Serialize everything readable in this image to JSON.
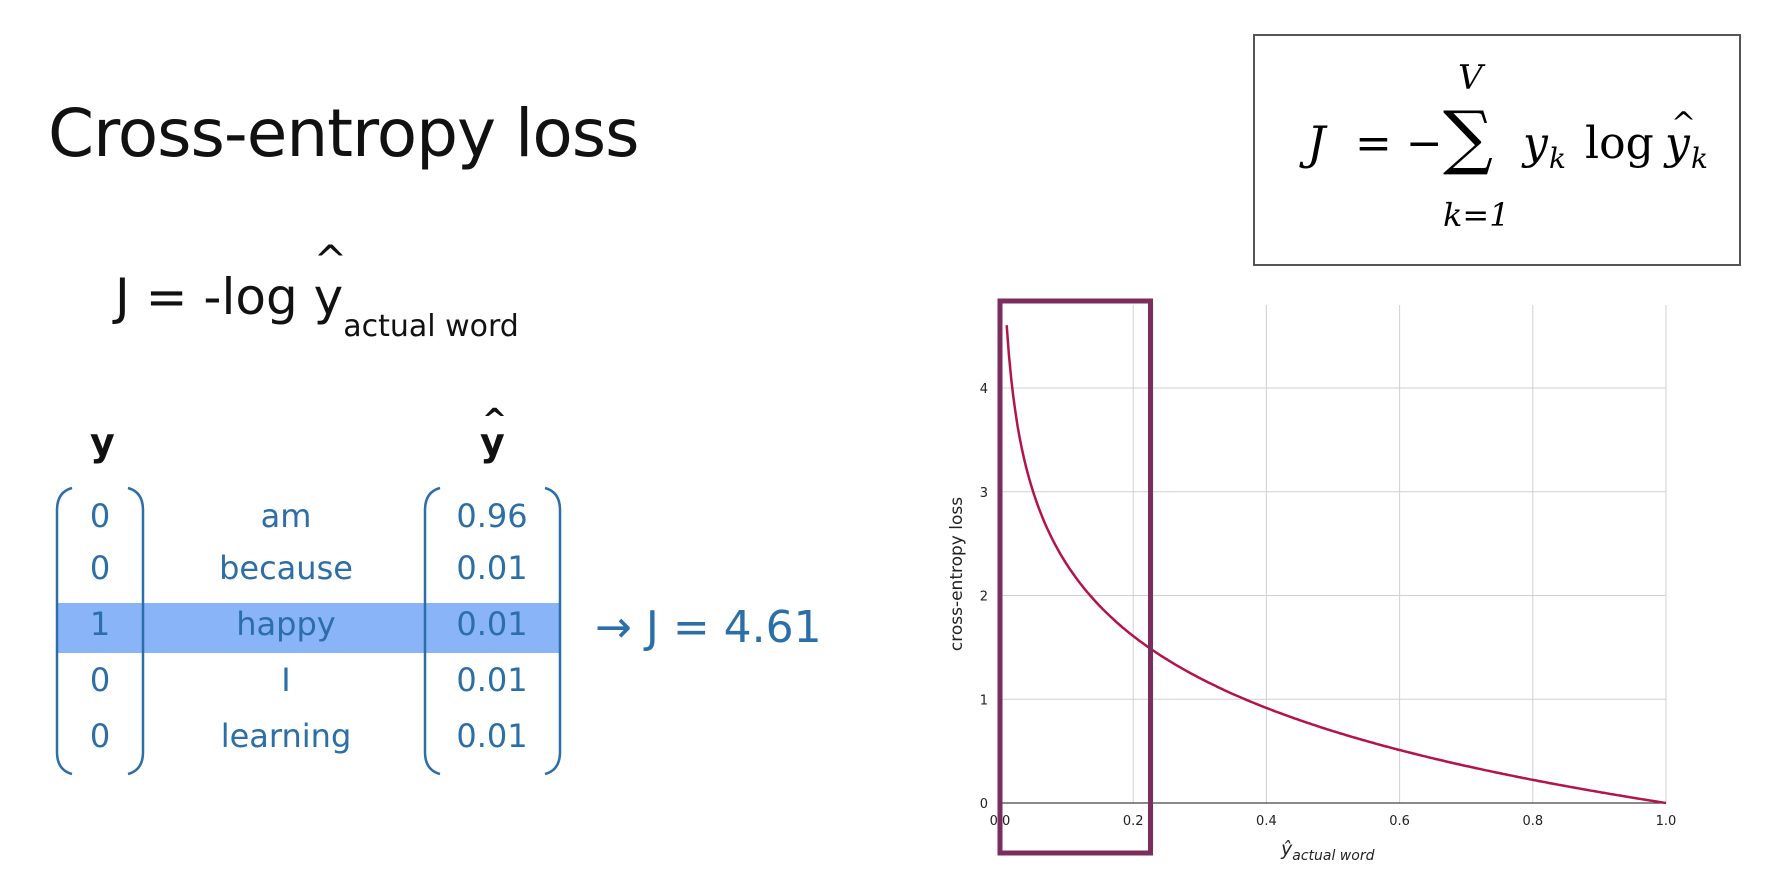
{
  "slide": {
    "title": "Cross-entropy loss",
    "simple_formula": {
      "main": "J = -log ",
      "y": "y",
      "hat": "^",
      "subscript": "actual word"
    },
    "box_formula": {
      "J": "J",
      "eq": "= −",
      "sum": "∑",
      "upper": "V",
      "lower": "k=1",
      "term": "y",
      "sub_k": "k",
      "log": "log",
      "yhat": "y",
      "hat": "^",
      "sub_k2": "k"
    }
  },
  "table": {
    "y_header": "y",
    "yhat_header": "y",
    "yhat_hat": "^",
    "rows": [
      {
        "y": "0",
        "word": "am",
        "yhat": "0.96"
      },
      {
        "y": "0",
        "word": "because",
        "yhat": "0.01"
      },
      {
        "y": "1",
        "word": "happy",
        "yhat": "0.01"
      },
      {
        "y": "0",
        "word": "I",
        "yhat": "0.01"
      },
      {
        "y": "0",
        "word": "learning",
        "yhat": "0.01"
      }
    ],
    "highlight_row": 2,
    "result": "→ J = 4.61"
  },
  "colors": {
    "curve": "#b5124a",
    "box": "#7b2d5d",
    "highlight": "#8ab4f8",
    "matrix_text": "#2b6ea8",
    "grid": "#d0d0d0"
  },
  "chart_data": {
    "type": "line",
    "function": "-log(x)",
    "x": [
      0.01,
      0.02,
      0.03,
      0.05,
      0.07,
      0.1,
      0.15,
      0.2,
      0.25,
      0.3,
      0.4,
      0.5,
      0.6,
      0.7,
      0.8,
      0.9,
      1.0
    ],
    "y": [
      4.61,
      3.91,
      3.51,
      3.0,
      2.66,
      2.3,
      1.9,
      1.61,
      1.39,
      1.2,
      0.92,
      0.69,
      0.51,
      0.36,
      0.22,
      0.11,
      0.0
    ],
    "xlabel": "ŷ",
    "xlabel_sub": "actual word",
    "ylabel": "cross-entropy loss",
    "xticks": [
      "0.0",
      "0.2",
      "0.4",
      "0.6",
      "0.8",
      "1.0"
    ],
    "yticks": [
      "0",
      "1",
      "2",
      "3",
      "4"
    ],
    "xlim": [
      0,
      1.0
    ],
    "ylim": [
      0,
      4.8
    ],
    "grid": true,
    "highlight_region_x": [
      0,
      0.22
    ]
  }
}
